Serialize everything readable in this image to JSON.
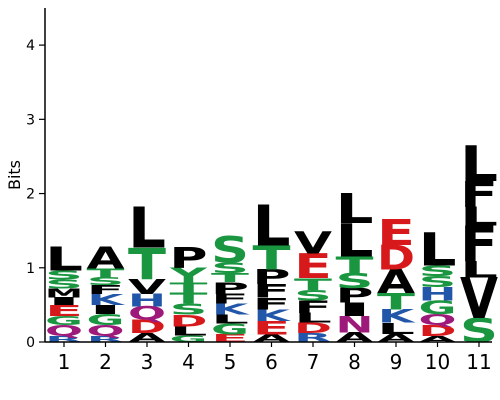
{
  "chart_data": {
    "type": "sequence-logo",
    "ylabel": "Bits",
    "ylim": [
      0,
      4.5
    ],
    "yticks": [
      0,
      1,
      2,
      3,
      4
    ],
    "positions": [
      "1",
      "2",
      "3",
      "4",
      "5",
      "6",
      "7",
      "8",
      "9",
      "10",
      "11"
    ],
    "colors": {
      "hydrophobic": "#000000",
      "polar": "#1a9641",
      "basic": "#2256a8",
      "acidic": "#d7191c",
      "amide": "#9e1a7a"
    },
    "residue_color_group": {
      "A": "hydrophobic",
      "V": "hydrophobic",
      "L": "hydrophobic",
      "I": "hydrophobic",
      "P": "hydrophobic",
      "F": "hydrophobic",
      "M": "hydrophobic",
      "W": "hydrophobic",
      "G": "polar",
      "S": "polar",
      "T": "polar",
      "Y": "polar",
      "C": "polar",
      "K": "basic",
      "R": "basic",
      "H": "basic",
      "D": "acidic",
      "E": "acidic",
      "N": "amide",
      "Q": "amide"
    },
    "columns": [
      {
        "position": "1",
        "stack": [
          [
            "R",
            0.08
          ],
          [
            "Q",
            0.15
          ],
          [
            "G",
            0.12
          ],
          [
            "E",
            0.15
          ],
          [
            "I",
            0.1
          ],
          [
            "M",
            0.12
          ],
          [
            "S",
            0.12
          ],
          [
            "S",
            0.12
          ],
          [
            "L",
            0.32
          ]
        ]
      },
      {
        "position": "2",
        "stack": [
          [
            "R",
            0.08
          ],
          [
            "Q",
            0.15
          ],
          [
            "G",
            0.15
          ],
          [
            "I",
            0.12
          ],
          [
            "K",
            0.15
          ],
          [
            "F",
            0.12
          ],
          [
            "S",
            0.1
          ],
          [
            "T",
            0.12
          ],
          [
            "A",
            0.3
          ]
        ]
      },
      {
        "position": "3",
        "stack": [
          [
            "A",
            0.12
          ],
          [
            "D",
            0.18
          ],
          [
            "Q",
            0.18
          ],
          [
            "H",
            0.17
          ],
          [
            "V",
            0.2
          ],
          [
            "T",
            0.42
          ],
          [
            "L",
            0.55
          ]
        ]
      },
      {
        "position": "4",
        "stack": [
          [
            "G",
            0.09
          ],
          [
            "L",
            0.12
          ],
          [
            "D",
            0.16
          ],
          [
            "S",
            0.15
          ],
          [
            "T",
            0.15
          ],
          [
            "T",
            0.13
          ],
          [
            "Y",
            0.2
          ],
          [
            "P",
            0.28
          ]
        ]
      },
      {
        "position": "5",
        "stack": [
          [
            "E",
            0.1
          ],
          [
            "G",
            0.15
          ],
          [
            "L",
            0.12
          ],
          [
            "K",
            0.15
          ],
          [
            "F",
            0.13
          ],
          [
            "P",
            0.16
          ],
          [
            "T",
            0.12
          ],
          [
            "S",
            0.14
          ],
          [
            "S",
            0.36
          ]
        ]
      },
      {
        "position": "6",
        "stack": [
          [
            "A",
            0.1
          ],
          [
            "E",
            0.18
          ],
          [
            "K",
            0.16
          ],
          [
            "F",
            0.16
          ],
          [
            "F",
            0.18
          ],
          [
            "P",
            0.2
          ],
          [
            "T",
            0.32
          ],
          [
            "L",
            0.55
          ]
        ]
      },
      {
        "position": "7",
        "stack": [
          [
            "R",
            0.12
          ],
          [
            "D",
            0.14
          ],
          [
            "L",
            0.13
          ],
          [
            "F",
            0.17
          ],
          [
            "S",
            0.14
          ],
          [
            "T",
            0.16
          ],
          [
            "E",
            0.33
          ],
          [
            "V",
            0.3
          ]
        ]
      },
      {
        "position": "8",
        "stack": [
          [
            "A",
            0.13
          ],
          [
            "N",
            0.22
          ],
          [
            "I",
            0.18
          ],
          [
            "P",
            0.2
          ],
          [
            "S",
            0.2
          ],
          [
            "T",
            0.22
          ],
          [
            "L",
            0.45
          ],
          [
            "L",
            0.4
          ]
        ]
      },
      {
        "position": "9",
        "stack": [
          [
            "A",
            0.11
          ],
          [
            "L",
            0.15
          ],
          [
            "K",
            0.18
          ],
          [
            "T",
            0.22
          ],
          [
            "A",
            0.32
          ],
          [
            "D",
            0.33
          ],
          [
            "E",
            0.35
          ]
        ]
      },
      {
        "position": "10",
        "stack": [
          [
            "A",
            0.08
          ],
          [
            "D",
            0.15
          ],
          [
            "Q",
            0.15
          ],
          [
            "G",
            0.18
          ],
          [
            "H",
            0.18
          ],
          [
            "S",
            0.15
          ],
          [
            "S",
            0.14
          ],
          [
            "L",
            0.45
          ]
        ]
      },
      {
        "position": "11",
        "stack": [
          [
            "S",
            0.32
          ],
          [
            "V",
            0.55
          ],
          [
            "L",
            0.22
          ],
          [
            "F",
            0.48
          ],
          [
            "L",
            0.25
          ],
          [
            "F",
            0.35
          ],
          [
            "L",
            0.48
          ]
        ]
      }
    ]
  }
}
